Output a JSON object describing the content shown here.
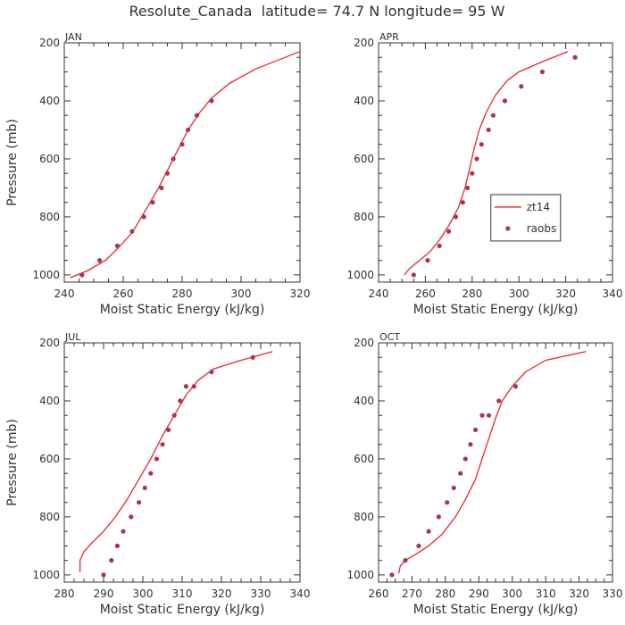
{
  "title": "Resolute_Canada  latitude= 74.7 N longitude= 95 W",
  "colors": {
    "model": "#e8262b",
    "obs": "#b0305a",
    "axis": "#333333"
  },
  "legend": {
    "model_label": "zt14",
    "obs_label": "raobs",
    "panel_index": 1
  },
  "chart_data": [
    {
      "type": "line",
      "panel": "JAN",
      "xlabel": "Moist Static Energy (kJ/kg)",
      "ylabel": "Pressure (mb)",
      "xlim": [
        240,
        320
      ],
      "ylim": [
        1025,
        200
      ],
      "xticks": [
        240,
        260,
        280,
        300,
        320
      ],
      "yticks": [
        200,
        400,
        600,
        800,
        1000
      ],
      "series": [
        {
          "name": "zt14",
          "style": "line",
          "x": [
            242,
            248,
            254,
            258,
            263,
            268,
            272,
            276,
            279,
            282,
            286,
            290,
            296,
            305,
            320
          ],
          "y": [
            1010,
            985,
            950,
            910,
            855,
            770,
            700,
            620,
            560,
            500,
            440,
            390,
            340,
            290,
            230
          ]
        },
        {
          "name": "raobs",
          "style": "markers",
          "x": [
            246,
            252,
            258,
            263,
            267,
            270,
            273,
            275,
            277,
            280,
            282,
            285,
            290
          ],
          "y": [
            1000,
            950,
            900,
            850,
            800,
            750,
            700,
            650,
            600,
            550,
            500,
            450,
            400
          ]
        }
      ]
    },
    {
      "type": "line",
      "panel": "APR",
      "xlabel": "Moist Static Energy (kJ/kg)",
      "ylabel": "",
      "xlim": [
        240,
        340
      ],
      "ylim": [
        1025,
        200
      ],
      "xticks": [
        240,
        260,
        280,
        300,
        320,
        340
      ],
      "yticks": [
        200,
        400,
        600,
        800,
        1000
      ],
      "series": [
        {
          "name": "zt14",
          "style": "line",
          "x": [
            251,
            253,
            256,
            262,
            266,
            270,
            274,
            277,
            279,
            281,
            283,
            286,
            290,
            295,
            300,
            310,
            321
          ],
          "y": [
            1000,
            980,
            960,
            920,
            880,
            830,
            770,
            700,
            630,
            560,
            500,
            440,
            380,
            330,
            300,
            265,
            230
          ]
        },
        {
          "name": "raobs",
          "style": "markers",
          "x": [
            255,
            261,
            266,
            270,
            273,
            276,
            278,
            280,
            282,
            284,
            287,
            289,
            294,
            301,
            310,
            324
          ],
          "y": [
            1000,
            950,
            900,
            850,
            800,
            750,
            700,
            650,
            600,
            550,
            500,
            450,
            400,
            350,
            300,
            250
          ]
        }
      ]
    },
    {
      "type": "line",
      "panel": "JUL",
      "xlabel": "Moist Static Energy (kJ/kg)",
      "ylabel": "Pressure (mb)",
      "xlim": [
        280,
        340
      ],
      "ylim": [
        1025,
        200
      ],
      "xticks": [
        280,
        290,
        300,
        310,
        320,
        330,
        340
      ],
      "yticks": [
        200,
        400,
        600,
        800,
        1000
      ],
      "series": [
        {
          "name": "zt14",
          "style": "line",
          "x": [
            284,
            284,
            285,
            287,
            290,
            293,
            296,
            299,
            302,
            305,
            308,
            311,
            314,
            318,
            325,
            333
          ],
          "y": [
            990,
            950,
            920,
            890,
            850,
            800,
            740,
            670,
            600,
            520,
            450,
            380,
            330,
            290,
            260,
            230
          ]
        },
        {
          "name": "raobs",
          "style": "markers",
          "x": [
            290,
            292,
            293.5,
            295,
            297,
            299,
            300.5,
            302,
            303.5,
            305,
            306.5,
            308,
            309.5,
            311,
            313,
            317.5,
            328
          ],
          "y": [
            1000,
            950,
            900,
            850,
            800,
            750,
            700,
            650,
            600,
            550,
            500,
            450,
            400,
            350,
            350,
            300,
            250
          ]
        }
      ]
    },
    {
      "type": "line",
      "panel": "OCT",
      "xlabel": "Moist Static Energy (kJ/kg)",
      "ylabel": "",
      "xlim": [
        260,
        330
      ],
      "ylim": [
        1025,
        200
      ],
      "xticks": [
        260,
        270,
        280,
        290,
        300,
        310,
        320,
        330
      ],
      "yticks": [
        200,
        400,
        600,
        800,
        1000
      ],
      "series": [
        {
          "name": "zt14",
          "style": "line",
          "x": [
            266,
            266.5,
            268,
            271,
            275,
            279,
            283,
            286,
            289,
            291,
            293,
            295,
            297,
            300,
            304,
            310,
            322
          ],
          "y": [
            995,
            970,
            950,
            930,
            900,
            860,
            800,
            740,
            670,
            600,
            530,
            460,
            400,
            350,
            300,
            260,
            230
          ]
        },
        {
          "name": "raobs",
          "style": "markers",
          "x": [
            264,
            268,
            272,
            275,
            278,
            280.5,
            282.5,
            284.5,
            286,
            287.5,
            289,
            291,
            293,
            296,
            301
          ],
          "y": [
            1000,
            950,
            900,
            850,
            800,
            750,
            700,
            650,
            600,
            550,
            500,
            450,
            450,
            400,
            350
          ]
        }
      ]
    }
  ]
}
